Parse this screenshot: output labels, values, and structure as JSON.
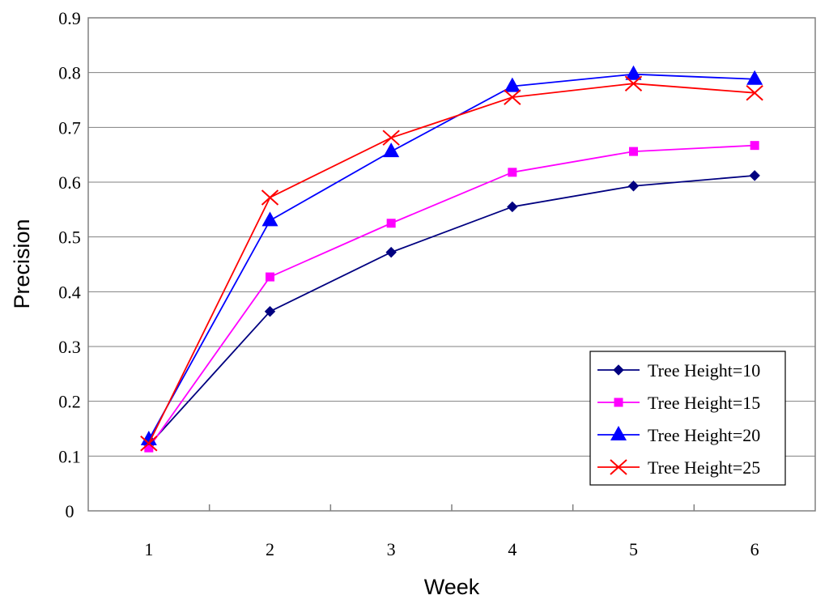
{
  "chart_data": {
    "type": "line",
    "title": "",
    "xlabel": "Week",
    "ylabel": "Precision",
    "categories": [
      "1",
      "2",
      "3",
      "4",
      "5",
      "6"
    ],
    "ylim": [
      0,
      0.9
    ],
    "yticks": [
      "0",
      "0.1",
      "0.2",
      "0.3",
      "0.4",
      "0.5",
      "0.6",
      "0.7",
      "0.8",
      "0.9"
    ],
    "grid": true,
    "legend_position": "bottom-right",
    "series": [
      {
        "name": "Tree Height=10",
        "color": "#000080",
        "marker": "diamond",
        "values": [
          0.12,
          0.364,
          0.472,
          0.555,
          0.593,
          0.612
        ]
      },
      {
        "name": "Tree Height=15",
        "color": "#ff00ff",
        "marker": "square",
        "values": [
          0.115,
          0.427,
          0.525,
          0.618,
          0.656,
          0.667
        ]
      },
      {
        "name": "Tree Height=20",
        "color": "#0000ff",
        "marker": "triangle",
        "values": [
          0.13,
          0.53,
          0.656,
          0.775,
          0.797,
          0.788
        ]
      },
      {
        "name": "Tree Height=25",
        "color": "#ff0000",
        "marker": "x",
        "values": [
          0.123,
          0.572,
          0.681,
          0.755,
          0.78,
          0.763
        ]
      }
    ]
  }
}
